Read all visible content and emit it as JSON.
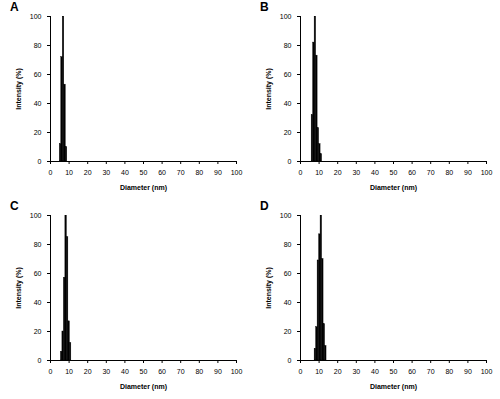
{
  "chart_data": [
    {
      "type": "histogram",
      "title": "A",
      "xlabel": "Diameter (nm)",
      "ylabel": "Intensity (%)",
      "color": "#000000",
      "bins": [
        5.0,
        5.8,
        6.6,
        7.4,
        8.2,
        9.0
      ],
      "values": [
        12,
        72,
        100,
        53,
        10
      ],
      "xlim": [
        0,
        100
      ],
      "xticks": [
        0,
        10,
        20,
        30,
        40,
        50,
        60,
        70,
        80,
        90,
        100
      ],
      "ylim": [
        0,
        100
      ],
      "yticks": [
        0,
        20,
        40,
        60,
        80,
        100
      ]
    },
    {
      "type": "histogram",
      "title": "B",
      "xlabel": "Diameter (nm)",
      "ylabel": "Intensity (%)",
      "color": "#000000",
      "bins": [
        6.0,
        6.8,
        7.6,
        8.4,
        9.2,
        10.0,
        10.8,
        11.6
      ],
      "values": [
        32,
        82,
        100,
        73,
        23,
        12,
        5
      ],
      "xlim": [
        0,
        100
      ],
      "xticks": [
        0,
        10,
        20,
        30,
        40,
        50,
        60,
        70,
        80,
        90,
        100
      ],
      "ylim": [
        0,
        100
      ],
      "yticks": [
        0,
        20,
        40,
        60,
        80,
        100
      ]
    },
    {
      "type": "histogram",
      "title": "C",
      "xlabel": "Diameter (nm)",
      "ylabel": "Intensity (%)",
      "color": "#000000",
      "bins": [
        5.6,
        6.4,
        7.2,
        8.0,
        8.8,
        9.6,
        10.4,
        11.2
      ],
      "values": [
        6,
        20,
        57,
        100,
        85,
        27,
        12
      ],
      "xlim": [
        0,
        100
      ],
      "xticks": [
        0,
        10,
        20,
        30,
        40,
        50,
        60,
        70,
        80,
        90,
        100
      ],
      "ylim": [
        0,
        100
      ],
      "yticks": [
        0,
        20,
        40,
        60,
        80,
        100
      ]
    },
    {
      "type": "histogram",
      "title": "D",
      "xlabel": "Diameter (nm)",
      "ylabel": "Intensity (%)",
      "color": "#000000",
      "bins": [
        7.6,
        8.4,
        9.2,
        10.0,
        10.8,
        11.6,
        12.4,
        13.2,
        14.0
      ],
      "values": [
        8,
        23,
        69,
        87,
        100,
        70,
        25,
        10
      ],
      "xlim": [
        0,
        100
      ],
      "xticks": [
        0,
        10,
        20,
        30,
        40,
        50,
        60,
        70,
        80,
        90,
        100
      ],
      "ylim": [
        0,
        100
      ],
      "yticks": [
        0,
        20,
        40,
        60,
        80,
        100
      ]
    }
  ]
}
